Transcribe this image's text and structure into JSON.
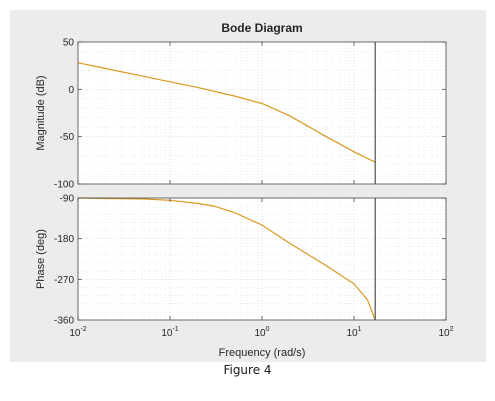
{
  "figure": {
    "caption": "Figure 4"
  },
  "chart_data": {
    "type": "line",
    "title": "Bode Diagram",
    "xlabel": "Frequency  (rad/s)",
    "x_scale": "log",
    "xlim": [
      0.01,
      100
    ],
    "x_ticks": [
      0.01,
      0.1,
      1,
      10,
      100
    ],
    "x_tick_labels": [
      {
        "base": "10",
        "exp": "-2"
      },
      {
        "base": "10",
        "exp": "-1"
      },
      {
        "base": "10",
        "exp": "0"
      },
      {
        "base": "10",
        "exp": "1"
      },
      {
        "base": "10",
        "exp": "2"
      }
    ],
    "grid": true,
    "colors": {
      "curve": "#d9991f",
      "marker": "#4d4d4d",
      "grid": "#e2e2e2",
      "axes": "#4a4a4a"
    },
    "vertical_marker_x": 17,
    "panels": [
      {
        "ylabel": "Magnitude (dB)",
        "ylim": [
          -100,
          50
        ],
        "y_ticks": [
          50,
          0,
          -50,
          -100
        ],
        "y_tick_labels": [
          "50",
          "0",
          "-50",
          "-100"
        ],
        "series": [
          {
            "x": [
              0.01,
              0.02,
              0.05,
              0.1,
              0.2,
              0.5,
              1,
              2,
              5,
              10,
              17
            ],
            "y": [
              28,
              22,
              14,
              8,
              2,
              -7,
              -15,
              -28,
              -50,
              -66,
              -77
            ]
          }
        ]
      },
      {
        "ylabel": "Phase (deg)",
        "ylim": [
          -360,
          -90
        ],
        "y_ticks": [
          -90,
          -180,
          -270,
          -360
        ],
        "y_tick_labels": [
          "-90",
          "-180",
          "-270",
          "-360"
        ],
        "series": [
          {
            "x": [
              0.01,
              0.02,
              0.05,
              0.1,
              0.2,
              0.3,
              0.5,
              1,
              2,
              5,
              10,
              14,
              17
            ],
            "y": [
              -90,
              -91,
              -92,
              -95,
              -102,
              -108,
              -122,
              -150,
              -190,
              -240,
              -280,
              -315,
              -360
            ]
          }
        ]
      }
    ]
  }
}
